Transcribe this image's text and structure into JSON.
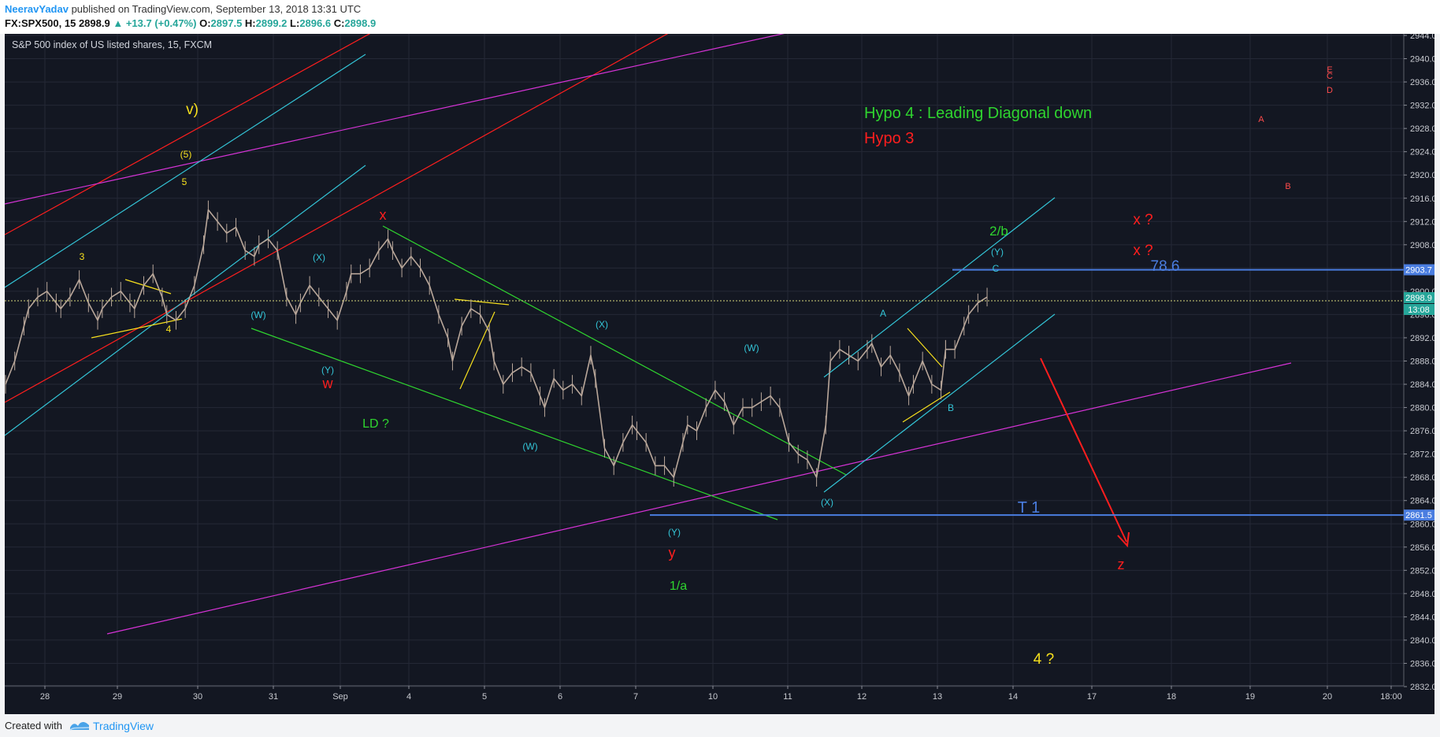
{
  "header": {
    "author": "NeeravYadav",
    "published": " published on TradingView.com, September 13, 2018 13:31 UTC",
    "symbol": "FX:SPX500, 15",
    "last": "2898.9",
    "change": "▲ +13.7 (+0.47%)",
    "o_label": "O:",
    "o_value": "2897.5",
    "h_label": "H:",
    "h_value": "2899.2",
    "l_label": "L:",
    "l_value": "2896.6",
    "c_label": "C:",
    "c_value": "2898.9"
  },
  "footer": {
    "created_with": "Created with",
    "brand": "TradingView"
  },
  "chart_data": {
    "type": "line",
    "title": "S&P 500 index of US listed shares, 15, FXCM",
    "ylim": [
      2832,
      2944
    ],
    "yticks": [
      2832,
      2836,
      2840,
      2844,
      2848,
      2852,
      2856,
      2860,
      2864,
      2868,
      2872,
      2876,
      2880,
      2884,
      2888,
      2892,
      2896,
      2900,
      2904,
      2908,
      2912,
      2916,
      2920,
      2924,
      2928,
      2932,
      2936,
      2940,
      2944
    ],
    "xticks": [
      "28",
      "29",
      "30",
      "31",
      "Sep",
      "4",
      "5",
      "6",
      "7",
      "10",
      "11",
      "12",
      "13",
      "14",
      "17",
      "18",
      "19",
      "20",
      "18:00"
    ],
    "grid": true,
    "colors": {
      "background": "#131722",
      "grid": "#242836",
      "candles": "#b9a79a",
      "green": "#2fd52f",
      "red": "#ff1e1e",
      "cyan": "#33c4d6",
      "magenta": "#d633d6",
      "yellow": "#f7e01d",
      "blue": "#4a7de0",
      "price_tag": "#26a69a"
    },
    "series": [
      {
        "x": [
          0,
          2,
          4,
          5,
          7,
          9,
          11,
          12,
          14,
          16,
          18,
          20,
          21,
          23,
          25,
          27,
          28,
          30,
          32,
          34,
          35,
          37,
          39,
          41,
          43,
          44,
          46,
          48,
          50,
          52,
          54,
          55,
          57,
          59,
          61,
          63,
          64,
          66,
          68,
          70,
          72,
          74,
          75,
          77,
          79,
          81,
          83,
          84,
          86,
          88,
          90,
          92,
          94,
          96,
          97,
          99,
          101,
          103,
          105,
          106,
          108,
          110,
          112,
          114,
          116,
          117,
          119,
          121,
          123,
          125,
          127,
          128,
          130,
          132,
          134,
          136,
          137,
          139,
          141,
          143,
          145,
          147,
          148,
          150,
          152,
          154,
          156,
          158,
          160,
          162,
          164,
          166,
          168,
          170,
          172,
          174,
          176,
          178,
          179,
          181,
          183
        ],
        "y": [
          2884,
          2888,
          2894,
          2897,
          2899,
          2900,
          2898,
          2897,
          2899,
          2902,
          2898,
          2895,
          2897,
          2899,
          2900,
          2898,
          2897,
          2901,
          2903,
          2899,
          2896,
          2895,
          2897,
          2901,
          2908,
          2914,
          2912,
          2910,
          2911,
          2907,
          2906,
          2908,
          2909,
          2907,
          2899,
          2896,
          2898,
          2901,
          2899,
          2897,
          2895,
          2900,
          2903,
          2903,
          2904,
          2907,
          2909,
          2907,
          2904,
          2906,
          2904,
          2901,
          2896,
          2892,
          2888,
          2894,
          2897,
          2896,
          2893,
          2888,
          2884,
          2886,
          2887,
          2886,
          2882,
          2880,
          2885,
          2883,
          2884,
          2882,
          2889,
          2885,
          2873,
          2870,
          2874,
          2877,
          2876,
          2874,
          2870,
          2870,
          2868,
          2874,
          2877,
          2876,
          2880,
          2883,
          2881,
          2877,
          2880,
          2880,
          2881,
          2882,
          2880,
          2874,
          2872,
          2871,
          2868,
          2877,
          2888,
          2890,
          2889
        ]
      },
      {
        "x": [
          183,
          185,
          187,
          188,
          190,
          192,
          194,
          196,
          197,
          199,
          201,
          203,
          204
        ],
        "y": [
          2889,
          2888,
          2890,
          2891,
          2887,
          2889,
          2886,
          2882,
          2884,
          2888,
          2884,
          2883,
          2890
        ]
      },
      {
        "x": [
          204,
          206,
          208,
          209,
          211,
          213
        ],
        "y": [
          2890,
          2890,
          2894,
          2896,
          2898,
          2899
        ]
      }
    ],
    "last_price": "2898.9",
    "countdown": "13:08",
    "price_tags": [
      "2903.7",
      "2861.5"
    ],
    "horizontal_levels": [
      {
        "value": 2903.7,
        "label": "78.6"
      },
      {
        "value": 2861.5,
        "label": "T 1"
      }
    ],
    "annotations": {
      "hypo4": "Hypo 4 : Leading Diagonal down",
      "hypo3": "Hypo 3",
      "v": "v)",
      "p5": "(5)",
      "n5": "5",
      "n3": "3",
      "n4": "4",
      "x_red": "x",
      "w_red": "w",
      "y_red": "y",
      "z_red": "z",
      "ld": "LD ?",
      "one_a": "1/a",
      "two_b": "2/b",
      "four_q": "4 ?",
      "xq1": "x ?",
      "xq2": "x ?",
      "W1": "(W)",
      "Y1": "(Y)",
      "X1": "(X)",
      "W2": "(W)",
      "X2": "(X)",
      "Y2": "(Y)",
      "W3": "(W)",
      "X3": "(X)",
      "Y3": "(Y)",
      "A_cyan": "A",
      "B_cyan": "B",
      "C_cyan": "C",
      "A_red": "A",
      "B_red": "B",
      "C_red": "C",
      "D_red": "D",
      "E_red": "E"
    }
  }
}
